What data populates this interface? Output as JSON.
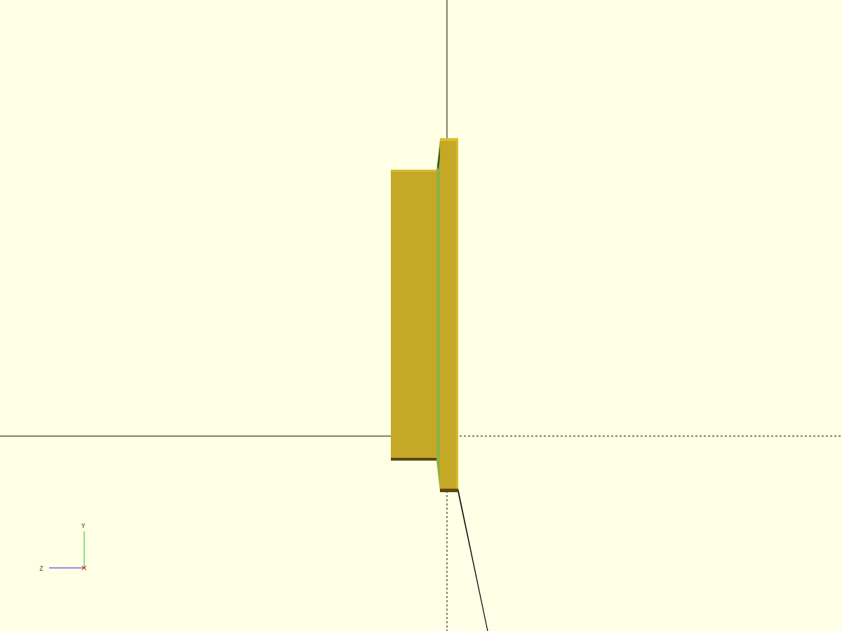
{
  "viewport": {
    "background_color": "#ffffe5",
    "model_color": "#c4a826",
    "model_highlight_color": "#dcc030",
    "model_edge_color": "#6b9a3a",
    "model_shadow_color": "#5c4a10",
    "axis_line_color": "#000000"
  },
  "gizmo": {
    "x_axis_color": "#e02020",
    "y_axis_color": "#20c020",
    "z_axis_color": "#2020e0",
    "y_label": "Y",
    "z_label": "Z"
  }
}
